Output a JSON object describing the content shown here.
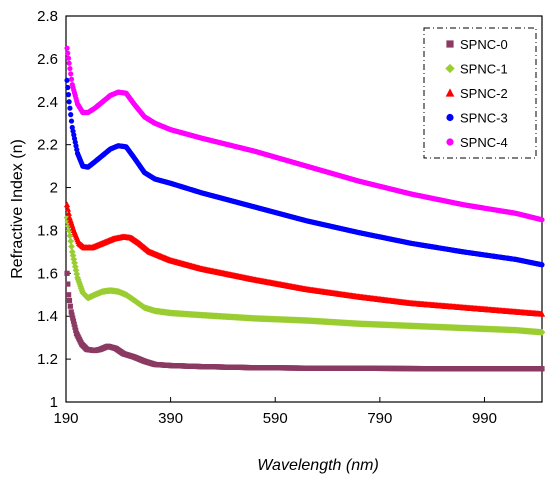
{
  "chart_data": {
    "type": "scatter",
    "xlabel": "Wavelength (nm)",
    "ylabel": "Refractive Index (n)",
    "xlim": [
      190,
      1100
    ],
    "ylim": [
      1,
      2.8
    ],
    "x_ticks": [
      "190",
      "390",
      "590",
      "790",
      "990"
    ],
    "y_ticks": [
      "1",
      "1.2",
      "1.4",
      "1.6",
      "1.8",
      "2",
      "2.2",
      "2.4",
      "2.6",
      "2.8"
    ],
    "legend_position": "top-right",
    "grid": false,
    "series": [
      {
        "name": "SPNC-0",
        "color": "#8B3A62",
        "marker": "square",
        "points": [
          [
            192,
            1.6
          ],
          [
            195,
            1.5
          ],
          [
            200,
            1.42
          ],
          [
            210,
            1.32
          ],
          [
            220,
            1.27
          ],
          [
            230,
            1.245
          ],
          [
            245,
            1.24
          ],
          [
            255,
            1.245
          ],
          [
            270,
            1.26
          ],
          [
            285,
            1.25
          ],
          [
            300,
            1.225
          ],
          [
            320,
            1.21
          ],
          [
            340,
            1.19
          ],
          [
            360,
            1.175
          ],
          [
            390,
            1.17
          ],
          [
            450,
            1.165
          ],
          [
            550,
            1.16
          ],
          [
            650,
            1.158
          ],
          [
            750,
            1.157
          ],
          [
            850,
            1.156
          ],
          [
            950,
            1.155
          ],
          [
            1050,
            1.155
          ],
          [
            1100,
            1.155
          ]
        ]
      },
      {
        "name": "SPNC-1",
        "color": "#9ACD32",
        "marker": "diamond",
        "points": [
          [
            192,
            1.86
          ],
          [
            196,
            1.8
          ],
          [
            202,
            1.7
          ],
          [
            212,
            1.58
          ],
          [
            222,
            1.51
          ],
          [
            232,
            1.485
          ],
          [
            245,
            1.5
          ],
          [
            260,
            1.515
          ],
          [
            275,
            1.52
          ],
          [
            290,
            1.515
          ],
          [
            305,
            1.5
          ],
          [
            320,
            1.475
          ],
          [
            340,
            1.44
          ],
          [
            360,
            1.425
          ],
          [
            390,
            1.415
          ],
          [
            450,
            1.405
          ],
          [
            550,
            1.39
          ],
          [
            650,
            1.38
          ],
          [
            750,
            1.365
          ],
          [
            850,
            1.355
          ],
          [
            950,
            1.345
          ],
          [
            1050,
            1.335
          ],
          [
            1100,
            1.325
          ]
        ]
      },
      {
        "name": "SPNC-2",
        "color": "#FF0000",
        "marker": "triangle",
        "points": [
          [
            192,
            1.92
          ],
          [
            197,
            1.86
          ],
          [
            205,
            1.8
          ],
          [
            215,
            1.74
          ],
          [
            225,
            1.72
          ],
          [
            240,
            1.72
          ],
          [
            260,
            1.74
          ],
          [
            280,
            1.76
          ],
          [
            300,
            1.77
          ],
          [
            315,
            1.765
          ],
          [
            330,
            1.74
          ],
          [
            350,
            1.7
          ],
          [
            370,
            1.68
          ],
          [
            390,
            1.66
          ],
          [
            450,
            1.62
          ],
          [
            550,
            1.57
          ],
          [
            650,
            1.525
          ],
          [
            750,
            1.49
          ],
          [
            850,
            1.46
          ],
          [
            950,
            1.44
          ],
          [
            1050,
            1.42
          ],
          [
            1100,
            1.41
          ]
        ]
      },
      {
        "name": "SPNC-3",
        "color": "#0000FF",
        "marker": "circle",
        "points": [
          [
            192,
            2.5
          ],
          [
            196,
            2.4
          ],
          [
            202,
            2.28
          ],
          [
            212,
            2.16
          ],
          [
            222,
            2.1
          ],
          [
            232,
            2.095
          ],
          [
            245,
            2.12
          ],
          [
            260,
            2.15
          ],
          [
            275,
            2.18
          ],
          [
            290,
            2.195
          ],
          [
            305,
            2.19
          ],
          [
            320,
            2.14
          ],
          [
            340,
            2.07
          ],
          [
            360,
            2.04
          ],
          [
            390,
            2.02
          ],
          [
            450,
            1.975
          ],
          [
            550,
            1.91
          ],
          [
            650,
            1.845
          ],
          [
            750,
            1.79
          ],
          [
            850,
            1.74
          ],
          [
            950,
            1.7
          ],
          [
            1050,
            1.665
          ],
          [
            1100,
            1.64
          ]
        ]
      },
      {
        "name": "SPNC-4",
        "color": "#FF00FF",
        "marker": "circle",
        "points": [
          [
            192,
            2.65
          ],
          [
            196,
            2.58
          ],
          [
            202,
            2.48
          ],
          [
            212,
            2.39
          ],
          [
            222,
            2.35
          ],
          [
            232,
            2.35
          ],
          [
            245,
            2.37
          ],
          [
            260,
            2.4
          ],
          [
            275,
            2.43
          ],
          [
            290,
            2.445
          ],
          [
            305,
            2.44
          ],
          [
            320,
            2.39
          ],
          [
            340,
            2.33
          ],
          [
            360,
            2.3
          ],
          [
            390,
            2.27
          ],
          [
            450,
            2.23
          ],
          [
            550,
            2.17
          ],
          [
            650,
            2.1
          ],
          [
            750,
            2.03
          ],
          [
            850,
            1.97
          ],
          [
            950,
            1.92
          ],
          [
            1050,
            1.88
          ],
          [
            1100,
            1.85
          ]
        ]
      }
    ]
  }
}
